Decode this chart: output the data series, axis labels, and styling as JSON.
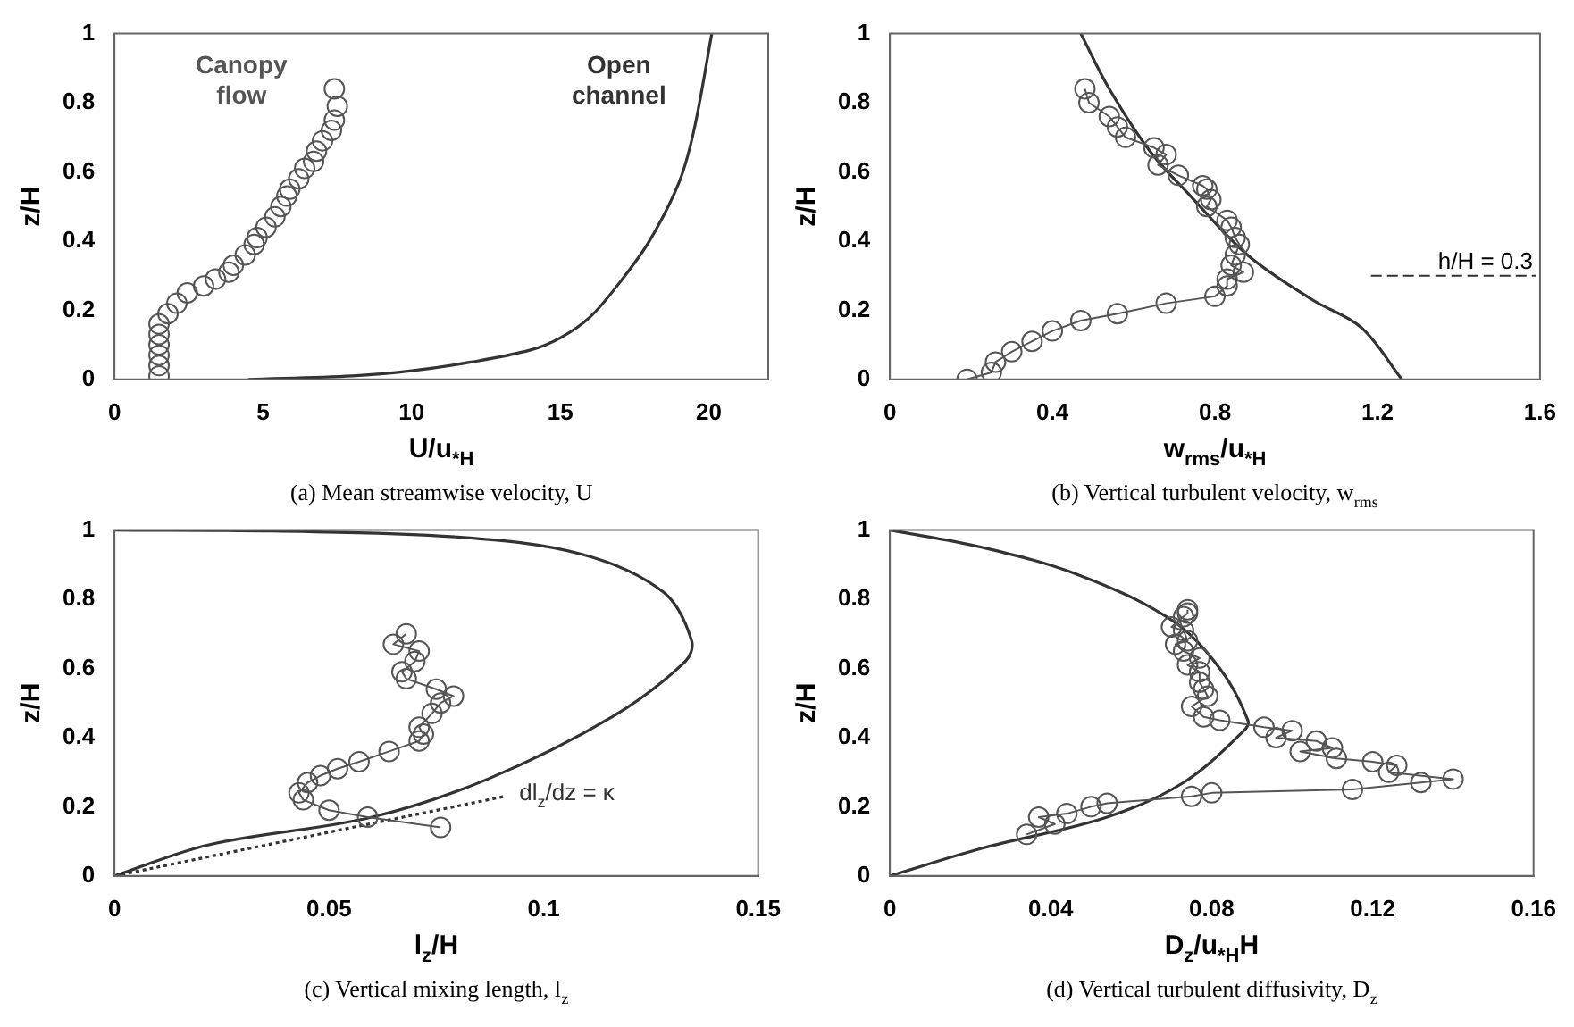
{
  "chart_data": [
    {
      "type": "line",
      "title": "(a) Mean streamwise velocity, U",
      "xlabel": "U/u$_{*H}$",
      "ylabel": "z/H",
      "xlim": [
        0,
        22
      ],
      "xticks": [
        0,
        5,
        10,
        15,
        20
      ],
      "ylim": [
        0,
        1
      ],
      "yticks": [
        0,
        0.2,
        0.4,
        0.6,
        0.8,
        1
      ],
      "series": [
        {
          "name": "Canopy flow",
          "type": "scatter",
          "marker": "circle",
          "color": "#555555",
          "x": [
            1.5,
            1.5,
            1.5,
            1.5,
            1.5,
            1.5,
            1.8,
            2.1,
            2.45,
            3.0,
            3.4,
            3.85,
            4.0,
            4.4,
            4.7,
            4.8,
            5.1,
            5.4,
            5.6,
            5.8,
            5.9,
            6.2,
            6.4,
            6.7,
            6.8,
            7.0,
            7.3,
            7.4,
            7.5,
            7.4
          ],
          "values": [
            0.01,
            0.04,
            0.07,
            0.1,
            0.13,
            0.16,
            0.19,
            0.22,
            0.25,
            0.27,
            0.29,
            0.31,
            0.33,
            0.36,
            0.39,
            0.41,
            0.44,
            0.47,
            0.5,
            0.53,
            0.55,
            0.58,
            0.61,
            0.63,
            0.66,
            0.69,
            0.72,
            0.75,
            0.79,
            0.84
          ]
        },
        {
          "name": "Open channel",
          "type": "line",
          "marker": "none",
          "color": "#333333",
          "x": [
            4.5,
            8,
            10,
            12,
            14,
            15,
            16,
            17,
            18,
            19,
            19.5,
            20.1
          ],
          "values": [
            0,
            0.01,
            0.025,
            0.05,
            0.085,
            0.12,
            0.18,
            0.28,
            0.4,
            0.57,
            0.72,
            1
          ]
        }
      ]
    },
    {
      "type": "line",
      "title": "(b) Vertical turbulent velocity, w$_{rms}$",
      "xlabel": "w$_{rms}$/u$_{*H}$",
      "ylabel": "z/H",
      "xlim": [
        0,
        1.6
      ],
      "xticks": [
        0,
        0.4,
        0.8,
        1.2,
        1.6
      ],
      "ylim": [
        0,
        1
      ],
      "yticks": [
        0,
        0.2,
        0.4,
        0.6,
        0.8,
        1
      ],
      "ref_lines": [
        {
          "axis": "y",
          "value": 0.3,
          "label": "h/H = 0.3",
          "line_style": "dashed"
        }
      ],
      "series": [
        {
          "type": "line",
          "marker": "circle",
          "color": "#555555",
          "x": [
            0.19,
            0.25,
            0.26,
            0.3,
            0.35,
            0.4,
            0.47,
            0.56,
            0.68,
            0.8,
            0.83,
            0.83,
            0.87,
            0.84,
            0.85,
            0.86,
            0.85,
            0.84,
            0.83,
            0.78,
            0.79,
            0.78,
            0.77,
            0.71,
            0.66,
            0.68,
            0.65,
            0.58,
            0.56,
            0.54,
            0.49,
            0.48
          ],
          "values": [
            0,
            0.02,
            0.05,
            0.08,
            0.11,
            0.14,
            0.17,
            0.19,
            0.22,
            0.24,
            0.27,
            0.29,
            0.31,
            0.33,
            0.36,
            0.39,
            0.41,
            0.44,
            0.46,
            0.5,
            0.52,
            0.55,
            0.56,
            0.59,
            0.62,
            0.65,
            0.67,
            0.7,
            0.73,
            0.76,
            0.8,
            0.84
          ]
        },
        {
          "type": "line",
          "marker": "none",
          "color": "#333333",
          "x": [
            0.47,
            0.54,
            0.64,
            0.74,
            0.88,
            1.04,
            1.16,
            1.26
          ],
          "values": [
            1,
            0.84,
            0.66,
            0.53,
            0.36,
            0.23,
            0.15,
            0
          ]
        }
      ]
    },
    {
      "type": "line",
      "title": "(c) Vertical mixing length, l$_{z}$",
      "xlabel": "l$_{z}$/H",
      "ylabel": "z/H",
      "xlim": [
        0,
        0.15
      ],
      "xticks": [
        0,
        0.05,
        0.1,
        0.15
      ],
      "ylim": [
        0,
        1
      ],
      "yticks": [
        0,
        0.2,
        0.4,
        0.6,
        0.8,
        1
      ],
      "series": [
        {
          "type": "line",
          "marker": "circle",
          "color": "#555555",
          "x": [
            0.076,
            0.059,
            0.05,
            0.044,
            0.043,
            0.045,
            0.048,
            0.052,
            0.057,
            0.064,
            0.071,
            0.072,
            0.071,
            0.074,
            0.076,
            0.079,
            0.075,
            0.068,
            0.067,
            0.07,
            0.071,
            0.065,
            0.068
          ],
          "values": [
            0.14,
            0.17,
            0.19,
            0.22,
            0.24,
            0.27,
            0.29,
            0.31,
            0.33,
            0.36,
            0.39,
            0.41,
            0.43,
            0.47,
            0.5,
            0.52,
            0.54,
            0.57,
            0.59,
            0.62,
            0.65,
            0.67,
            0.7
          ]
        },
        {
          "type": "line",
          "marker": "none",
          "color": "#333333",
          "x": [
            0,
            0.022,
            0.06,
            0.087,
            0.116,
            0.133,
            0.1345,
            0.128,
            0.109,
            0.08,
            0.037,
            0
          ],
          "values": [
            0,
            0.09,
            0.17,
            0.28,
            0.46,
            0.62,
            0.68,
            0.82,
            0.93,
            0.98,
            0.997,
            1
          ]
        },
        {
          "name": "dl$_{z}$/dz = κ",
          "type": "line",
          "marker": "none",
          "line_style": "dotted",
          "color": "#333333",
          "x": [
            0,
            0.091
          ],
          "values": [
            0,
            0.23
          ]
        }
      ]
    },
    {
      "type": "line",
      "title": "(d) Vertical turbulent diffusivity, D$_{z}$",
      "xlabel": "D$_{z}$/u$_{*H}$H",
      "ylabel": "z/H",
      "xlim": [
        0,
        0.16
      ],
      "xticks": [
        0,
        0.04,
        0.08,
        0.12,
        0.16
      ],
      "ylim": [
        0,
        1
      ],
      "yticks": [
        0,
        0.2,
        0.4,
        0.6,
        0.8,
        1
      ],
      "series": [
        {
          "type": "line",
          "marker": "circle",
          "color": "#555555",
          "x": [
            0.034,
            0.041,
            0.037,
            0.044,
            0.05,
            0.054,
            0.075,
            0.08,
            0.115,
            0.132,
            0.14,
            0.124,
            0.126,
            0.12,
            0.111,
            0.102,
            0.11,
            0.106,
            0.096,
            0.1,
            0.093,
            0.082,
            0.078,
            0.075,
            0.079,
            0.078,
            0.077,
            0.077,
            0.074,
            0.077,
            0.073,
            0.071,
            0.074,
            0.073,
            0.07,
            0.073,
            0.074,
            0.074
          ],
          "values": [
            0.12,
            0.15,
            0.17,
            0.18,
            0.2,
            0.21,
            0.23,
            0.24,
            0.25,
            0.27,
            0.28,
            0.3,
            0.32,
            0.33,
            0.34,
            0.36,
            0.37,
            0.39,
            0.4,
            0.42,
            0.43,
            0.45,
            0.46,
            0.49,
            0.52,
            0.54,
            0.56,
            0.59,
            0.61,
            0.63,
            0.65,
            0.67,
            0.68,
            0.71,
            0.72,
            0.75,
            0.76,
            0.77
          ]
        },
        {
          "type": "line",
          "marker": "none",
          "color": "#333333",
          "x": [
            0,
            0.023,
            0.054,
            0.073,
            0.088,
            0.089,
            0.082,
            0.07,
            0.047,
            0.023,
            0
          ],
          "values": [
            0,
            0.08,
            0.17,
            0.27,
            0.42,
            0.45,
            0.6,
            0.74,
            0.87,
            0.95,
            1
          ]
        }
      ]
    }
  ]
}
